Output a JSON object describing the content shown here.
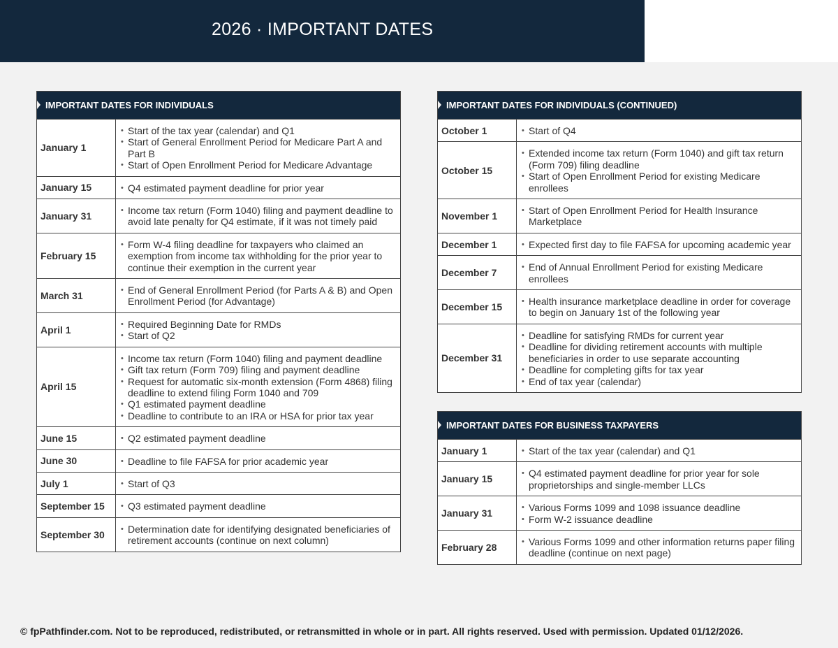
{
  "header": {
    "title": "2026 · IMPORTANT DATES"
  },
  "tables": [
    {
      "title": "IMPORTANT DATES FOR INDIVIDUALS",
      "rows": [
        {
          "date": "January 1",
          "items": [
            "Start of the tax year (calendar) and Q1",
            "Start of General Enrollment Period for Medicare Part A and Part B",
            "Start of Open Enrollment Period for Medicare Advantage"
          ]
        },
        {
          "date": "January 15",
          "items": [
            "Q4 estimated payment deadline for prior year"
          ]
        },
        {
          "date": "January 31",
          "items": [
            "Income tax return (Form 1040) filing and payment deadline to avoid late penalty for Q4 estimate, if it was not timely paid"
          ]
        },
        {
          "date": "February 15",
          "items": [
            "Form W-4 filing deadline for taxpayers who claimed an exemption from income tax withholding for the prior year to continue their exemption in the current year"
          ]
        },
        {
          "date": "March 31",
          "items": [
            "End of General Enrollment Period (for Parts A & B) and Open Enrollment Period (for Advantage)"
          ]
        },
        {
          "date": "April 1",
          "items": [
            "Required Beginning Date for RMDs",
            "Start of Q2"
          ]
        },
        {
          "date": "April 15",
          "items": [
            "Income tax return (Form 1040) filing and payment deadline",
            "Gift tax return (Form 709) filing and payment deadline",
            "Request for automatic six-month extension (Form 4868) filing deadline to extend filing Form 1040 and 709",
            "Q1 estimated payment deadline",
            "Deadline to contribute to an IRA or HSA for prior tax year"
          ]
        },
        {
          "date": "June 15",
          "items": [
            "Q2 estimated payment deadline"
          ]
        },
        {
          "date": "June 30",
          "items": [
            "Deadline to file FAFSA for prior academic year"
          ]
        },
        {
          "date": "July 1",
          "items": [
            "Start of Q3"
          ]
        },
        {
          "date": "September 15",
          "items": [
            "Q3 estimated payment deadline"
          ]
        },
        {
          "date": "September 30",
          "items": [
            "Determination date for identifying designated beneficiaries of retirement accounts (continue on next column)"
          ]
        }
      ]
    },
    {
      "title": "IMPORTANT DATES FOR INDIVIDUALS (CONTINUED)",
      "rows": [
        {
          "date": "October 1",
          "items": [
            "Start of Q4"
          ]
        },
        {
          "date": "October 15",
          "items": [
            "Extended income tax return (Form 1040) and gift tax return (Form 709) filing deadline",
            "Start of Open Enrollment Period for existing Medicare enrollees"
          ]
        },
        {
          "date": "November 1",
          "items": [
            "Start of Open Enrollment Period for Health Insurance Marketplace"
          ]
        },
        {
          "date": "December 1",
          "items": [
            "Expected first day to file FAFSA for upcoming academic year"
          ]
        },
        {
          "date": "December 7",
          "items": [
            "End of Annual Enrollment Period for existing Medicare enrollees"
          ]
        },
        {
          "date": "December 15",
          "items": [
            "Health insurance marketplace deadline in order for coverage to begin on January 1st of the following year"
          ]
        },
        {
          "date": "December 31",
          "items": [
            "Deadline for satisfying RMDs for current year",
            "Deadline for dividing retirement accounts with multiple beneficiaries in order to use separate accounting",
            "Deadline for completing gifts for tax year",
            "End of tax year (calendar)"
          ]
        }
      ]
    },
    {
      "title": "IMPORTANT DATES FOR BUSINESS TAXPAYERS",
      "rows": [
        {
          "date": "January 1",
          "items": [
            "Start of the tax year (calendar) and Q1"
          ]
        },
        {
          "date": "January 15",
          "items": [
            "Q4 estimated payment deadline for prior year for sole proprietorships and single-member LLCs"
          ]
        },
        {
          "date": "January 31",
          "items": [
            "Various Forms 1099 and 1098 issuance deadline",
            "Form W-2 issuance deadline"
          ]
        },
        {
          "date": "February 28",
          "items": [
            "Various Forms 1099 and other information returns paper filing deadline (continue on next page)"
          ]
        }
      ]
    }
  ],
  "footer": "© fpPathfinder.com. Not to be reproduced, redistributed, or retransmitted in whole or in part. All rights reserved. Used with permission. Updated 01/12/2026."
}
